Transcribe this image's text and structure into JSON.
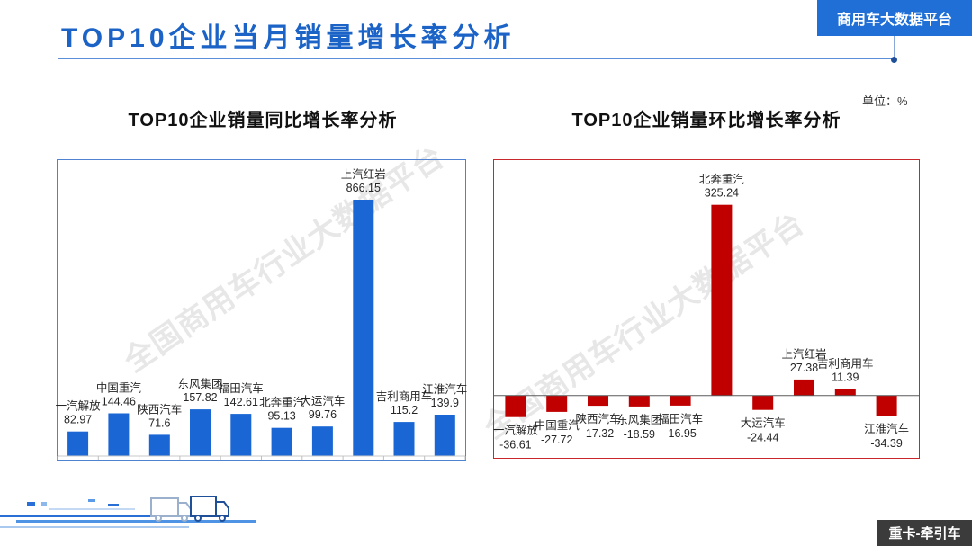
{
  "header": {
    "title": "TOP10企业当月销量增长率分析",
    "platform_badge": "商用车大数据平台"
  },
  "unit_label": "单位：%",
  "watermark": "全国商用车行业大数据平台",
  "footer": {
    "tag": "重卡-牵引车"
  },
  "colors": {
    "title": "#1b63c6",
    "badge_bg": "#1f6fd6",
    "yoy_bar": "#1a66d4",
    "mom_bar": "#c00000",
    "footer_bg": "#3b3b3b"
  },
  "chart_data": [
    {
      "type": "bar",
      "title": "TOP10企业销量同比增长率分析",
      "categories": [
        "一汽解放",
        "中国重汽",
        "陕西汽车",
        "东风集团",
        "福田汽车",
        "北奔重汽",
        "大运汽车",
        "上汽红岩",
        "吉利商用车",
        "江淮汽车"
      ],
      "values": [
        82.97,
        144.46,
        71.6,
        157.82,
        142.61,
        95.13,
        99.76,
        866.15,
        115.2,
        139.9
      ],
      "ylim": [
        0,
        1000
      ],
      "grid": false,
      "data_labels": true,
      "color": "#1a66d4"
    },
    {
      "type": "bar",
      "title": "TOP10企业销量环比增长率分析",
      "categories": [
        "一汽解放",
        "中国重汽",
        "陕西汽车",
        "东风集团",
        "福田汽车",
        "北奔重汽",
        "大运汽车",
        "上汽红岩",
        "吉利商用车",
        "江淮汽车"
      ],
      "values": [
        -36.61,
        -27.72,
        -17.32,
        -18.59,
        -16.95,
        325.24,
        -24.44,
        27.38,
        11.39,
        -34.39
      ],
      "ylim": [
        -100,
        400
      ],
      "grid": false,
      "data_labels": true,
      "color": "#c00000"
    }
  ]
}
